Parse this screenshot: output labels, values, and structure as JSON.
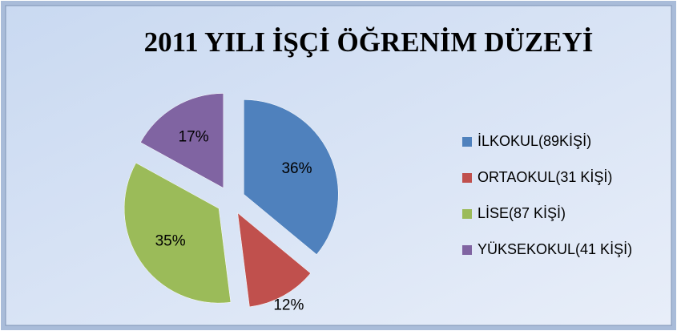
{
  "chart_data": {
    "type": "pie",
    "title": "2011 YILI İŞÇİ ÖĞRENİM DÜZEYİ",
    "categories": [
      "İLKOKUL(89KİŞİ)",
      "ORTAOKUL(31 KİŞİ)",
      "LİSE(87 KİŞİ)",
      "YÜKSEKOKUL(41 KİŞİ)"
    ],
    "values": [
      36,
      12,
      35,
      17
    ],
    "value_labels": [
      "36%",
      "12%",
      "35%",
      "17%"
    ],
    "colors": [
      "#4f81bd",
      "#c0504d",
      "#9bbb59",
      "#8064a2"
    ],
    "legend": "right"
  }
}
